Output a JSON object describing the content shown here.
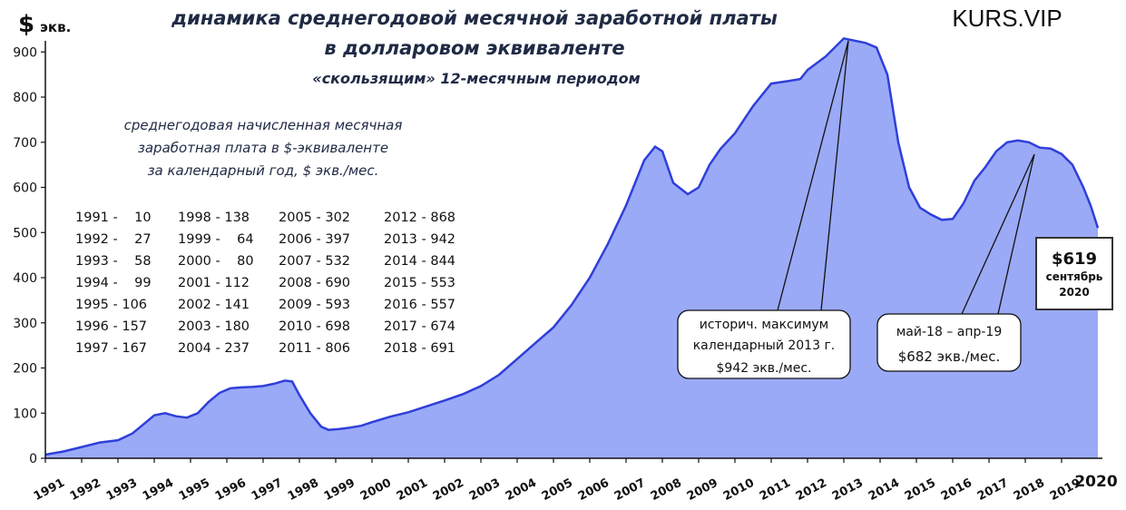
{
  "brand": "KURS.VIP",
  "chart_data": {
    "type": "area",
    "title": "динамика среднегодовой месячной заработной платы",
    "title_line2": "в долларовом эквиваленте",
    "subtitle": "«скользящим» 12-месячным периодом",
    "ylabel_symbol": "$",
    "ylabel_unit": "экв.",
    "ylim": [
      0,
      950
    ],
    "yticks": [
      0,
      100,
      200,
      300,
      400,
      500,
      600,
      700,
      800,
      900
    ],
    "xticks": [
      "1991",
      "1992",
      "1993",
      "1994",
      "1995",
      "1996",
      "1997",
      "1998",
      "1999",
      "2000",
      "2001",
      "2002",
      "2003",
      "2004",
      "2005",
      "2006",
      "2007",
      "2008",
      "2009",
      "2010",
      "2011",
      "2012",
      "2013",
      "2014",
      "2015",
      "2016",
      "2017",
      "2018",
      "2019"
    ],
    "xtick_last": "2020",
    "xlim": [
      1991,
      2020
    ],
    "fill_color": "#9aaaf7",
    "line_color": "#2f3fd9",
    "series": [
      {
        "x": [
          1991.0,
          1991.5,
          1992.0,
          1992.5,
          1993.0,
          1993.4,
          1993.7,
          1994.0,
          1994.3,
          1994.6,
          1994.9,
          1995.2,
          1995.5,
          1995.8,
          1996.1,
          1996.4,
          1996.7,
          1997.0,
          1997.3,
          1997.6,
          1997.8,
          1998.0,
          1998.3,
          1998.6,
          1998.8,
          1999.1,
          1999.4,
          1999.7,
          2000.0,
          2000.5,
          2001.0,
          2001.5,
          2002.0,
          2002.5,
          2003.0,
          2003.5,
          2004.0,
          2004.5,
          2005.0,
          2005.5,
          2006.0,
          2006.5,
          2007.0,
          2007.5,
          2007.8,
          2008.0,
          2008.3,
          2008.7,
          2009.0,
          2009.3,
          2009.6,
          2010.0,
          2010.5,
          2011.0,
          2011.5,
          2011.8,
          2012.0,
          2012.5,
          2013.0,
          2013.3,
          2013.6,
          2013.9,
          2014.2,
          2014.5,
          2014.8,
          2015.1,
          2015.4,
          2015.7,
          2016.0,
          2016.3,
          2016.6,
          2016.9,
          2017.2,
          2017.5,
          2017.8,
          2018.1,
          2018.4,
          2018.7,
          2019.0,
          2019.3,
          2019.6,
          2019.8,
          2020.0
        ],
        "y": [
          8,
          15,
          25,
          35,
          40,
          55,
          75,
          95,
          100,
          93,
          90,
          100,
          125,
          145,
          155,
          157,
          158,
          160,
          165,
          172,
          170,
          140,
          100,
          70,
          63,
          65,
          68,
          72,
          80,
          92,
          102,
          115,
          128,
          142,
          160,
          185,
          220,
          255,
          290,
          340,
          400,
          475,
          560,
          660,
          690,
          680,
          610,
          585,
          600,
          650,
          685,
          720,
          780,
          830,
          836,
          840,
          860,
          890,
          930,
          925,
          920,
          910,
          850,
          700,
          600,
          555,
          540,
          528,
          530,
          565,
          615,
          645,
          680,
          700,
          704,
          700,
          688,
          686,
          674,
          650,
          600,
          560,
          510
        ]
      }
    ],
    "table_heading": [
      "среднегодовая начисленная месячная",
      "заработная плата в $-эквиваленте",
      "за календарный год, $ экв./мес."
    ],
    "annual_table": [
      [
        "1991 -    10",
        "1998 - 138",
        "2005 - 302",
        "2012 - 868"
      ],
      [
        "1992 -    27",
        "1999 -    64",
        "2006 - 397",
        "2013 - 942"
      ],
      [
        "1993 -    58",
        "2000 -    80",
        "2007 - 532",
        "2014 - 844"
      ],
      [
        "1994 -    99",
        "2001 - 112",
        "2008 - 690",
        "2015 - 553"
      ],
      [
        "1995 - 106",
        "2002 - 141",
        "2009 - 593",
        "2016 - 557"
      ],
      [
        "1996 - 157",
        "2003 - 180",
        "2010 - 698",
        "2017 - 674"
      ],
      [
        "1997 - 167",
        "2004 - 237",
        "2011 - 806",
        "2018 - 691"
      ]
    ],
    "callouts": {
      "max": [
        "историч.  максимум",
        "календарный  2013 г.",
        "$942 экв./мес."
      ],
      "recent": [
        "май-18 – апр-19",
        "$682 экв./мес."
      ],
      "sept": [
        "$619",
        "сентябрь",
        "2020"
      ]
    }
  }
}
